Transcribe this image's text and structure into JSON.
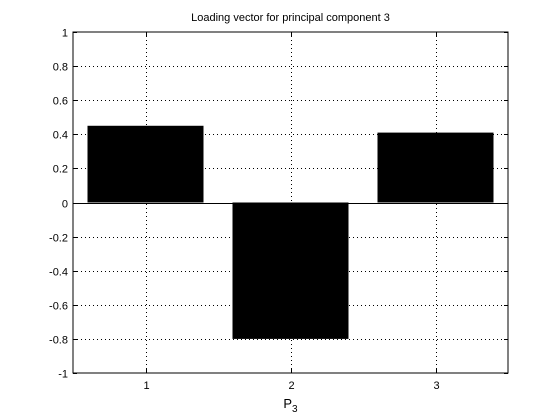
{
  "chart_data": {
    "type": "bar",
    "title": "Loading vector for principal component 3",
    "xlabel": {
      "main": "P",
      "subscript": "3"
    },
    "ylabel": "",
    "categories": [
      "1",
      "2",
      "3"
    ],
    "x": [
      1,
      2,
      3
    ],
    "values": [
      0.45,
      -0.8,
      0.41
    ],
    "xlim": [
      0.5,
      3.5
    ],
    "ylim": [
      -1,
      1
    ],
    "yticks": [
      -1,
      -0.8,
      -0.6,
      -0.4,
      -0.2,
      0,
      0.2,
      0.4,
      0.6,
      0.8,
      1
    ],
    "ytick_labels": [
      "-1",
      "-0.8",
      "-0.6",
      "-0.4",
      "-0.2",
      "0",
      "0.2",
      "0.4",
      "0.6",
      "0.8",
      "1"
    ],
    "grid": true,
    "bar_color": "#000000",
    "axis_color": "#000000",
    "grid_color": "#000000",
    "background_color": "#ffffff"
  }
}
